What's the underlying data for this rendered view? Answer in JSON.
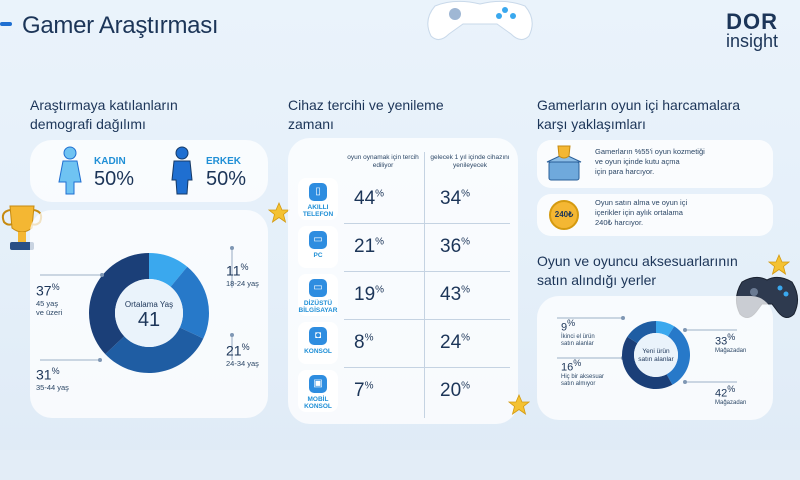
{
  "header": {
    "title": "Gamer Araştırması",
    "logo_line1": "DOR",
    "logo_line2": "insight"
  },
  "demographics": {
    "heading_line1": "Araştırmaya katılanların",
    "heading_line2": "demografi dağılımı",
    "female_label": "KADIN",
    "female_pct": "50%",
    "male_label": "ERKEK",
    "male_pct": "50%",
    "donut_center_label": "Ortalama Yaş",
    "donut_center_value": "41",
    "age_groups": [
      {
        "value": "11",
        "label": "18-24 yaş",
        "fraction": 0.11,
        "color": "#3aa8ee"
      },
      {
        "value": "21",
        "label": "24-34 yaş",
        "fraction": 0.21,
        "color": "#2779c9"
      },
      {
        "value": "31",
        "label": "35-44 yaş",
        "fraction": 0.31,
        "color": "#1f5da3"
      },
      {
        "value": "37",
        "label": "45 yaş ve üzeri",
        "fraction": 0.37,
        "color": "#1b3f78"
      }
    ]
  },
  "devices": {
    "heading_line1": "Cihaz tercihi ve yenileme",
    "heading_line2": "zamanı",
    "col1_header": "oyun oynamak için tercih ediliyor",
    "col2_header": "gelecek 1 yıl içinde cihazını yenileyecek",
    "rows": [
      {
        "label": "AKILLI TELEFON",
        "icon": "smartphone-icon",
        "icon_glyph": "▯",
        "pref": "44",
        "renew": "34"
      },
      {
        "label": "PC",
        "icon": "pc-icon",
        "icon_glyph": "▭",
        "pref": "21",
        "renew": "36"
      },
      {
        "label": "DİZÜSTÜ BİLGİSAYAR",
        "icon": "laptop-icon",
        "icon_glyph": "▭",
        "pref": "19",
        "renew": "43"
      },
      {
        "label": "KONSOL",
        "icon": "console-icon",
        "icon_glyph": "◘",
        "pref": "8",
        "renew": "24"
      },
      {
        "label": "MOBİL KONSOL",
        "icon": "mobile-console-icon",
        "icon_glyph": "▣",
        "pref": "7",
        "renew": "20"
      }
    ],
    "pct_symbol": "%"
  },
  "spending": {
    "heading_line1": "Gamerların oyun içi harcamalara",
    "heading_line2": "karşı yaklaşımları",
    "item1_line1": "Gamerların %55'i oyun kozmetiği",
    "item1_line2": "ve oyun içinde kutu açma",
    "item1_line3": "için para harcıyor.",
    "item2_badge": "240₺",
    "item2_line1": "Oyun satın alma ve oyun içi",
    "item2_line2": "içerikler için aylık ortalama",
    "item2_line3": "240₺ harcıyor."
  },
  "places": {
    "heading_line1": "Oyun ve oyuncu aksesuarlarının",
    "heading_line2": "satın alındığı yerler",
    "center_line1": "Yeni ürün",
    "center_line2": "satın alanlar",
    "segments": [
      {
        "value": "9",
        "label": "İkinci el ürün satın alanlar",
        "fraction": 0.09,
        "color": "#3aa8ee"
      },
      {
        "value": "33",
        "label": "Mağazadan",
        "fraction": 0.33,
        "color": "#2779c9"
      },
      {
        "value": "42",
        "label": "Mağazadan",
        "fraction": 0.42,
        "color": "#1b3f78"
      },
      {
        "value": "16",
        "label": "Hiç bir aksesuar satın almıyor",
        "fraction": 0.16,
        "color": "#1f5da3"
      }
    ],
    "left_top_line1": "İkinci el ürün",
    "left_top_line2": "satın alanlar",
    "left_bottom_line1": "Hiç bir aksesuar",
    "left_bottom_line2": "satın almıyor",
    "right_top_label": "Mağazadan",
    "right_bottom_label": "Mağazadan"
  }
}
